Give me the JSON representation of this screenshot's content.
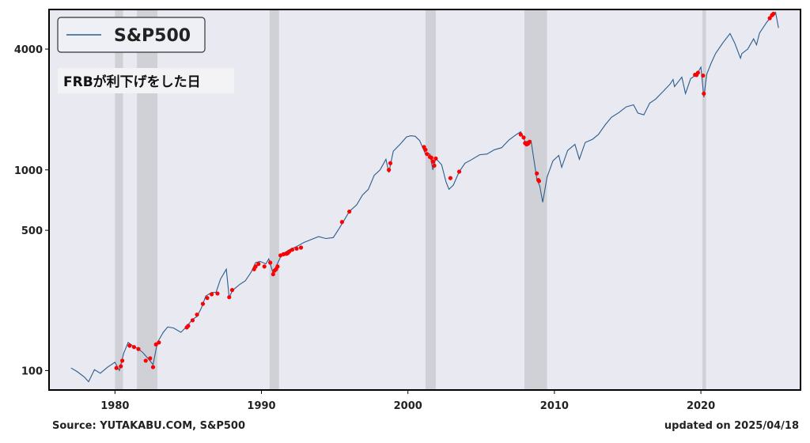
{
  "footer": {
    "source": "Source: YUTAKABU.COM, S&P500",
    "updated": "updated on 2025/04/18"
  },
  "chart_data": {
    "type": "line",
    "title": "",
    "xlabel": "",
    "ylabel": "",
    "y_scale": "log",
    "xlim": [
      1975.5,
      2026.8
    ],
    "ylim": [
      80,
      6300
    ],
    "x_ticks": [
      1980,
      1990,
      2000,
      2010,
      2020
    ],
    "x_tick_labels": [
      "1980",
      "1990",
      "2000",
      "2010",
      "2020"
    ],
    "y_ticks": [
      100,
      500,
      1000,
      4000
    ],
    "y_tick_labels": [
      "100",
      "500",
      "1000",
      "4000"
    ],
    "grid": false,
    "background_color": "#e9e9f2",
    "legend": {
      "position": "top-left",
      "entries": [
        "S&P500"
      ]
    },
    "annotation": "FRBが利下げをした日",
    "series": [
      {
        "name": "S&P500",
        "color": "#2b5d8c",
        "points": [
          [
            1977.0,
            103
          ],
          [
            1977.4,
            99
          ],
          [
            1977.9,
            93
          ],
          [
            1978.2,
            88
          ],
          [
            1978.6,
            101
          ],
          [
            1979.0,
            97
          ],
          [
            1979.5,
            104
          ],
          [
            1980.0,
            110
          ],
          [
            1980.3,
            100
          ],
          [
            1980.6,
            122
          ],
          [
            1980.9,
            138
          ],
          [
            1981.2,
            133
          ],
          [
            1981.6,
            128
          ],
          [
            1981.9,
            123
          ],
          [
            1982.3,
            114
          ],
          [
            1982.6,
            107
          ],
          [
            1982.9,
            138
          ],
          [
            1983.3,
            155
          ],
          [
            1983.6,
            165
          ],
          [
            1984.0,
            163
          ],
          [
            1984.5,
            155
          ],
          [
            1984.9,
            166
          ],
          [
            1985.3,
            180
          ],
          [
            1985.6,
            186
          ],
          [
            1985.9,
            205
          ],
          [
            1986.2,
            235
          ],
          [
            1986.6,
            245
          ],
          [
            1986.9,
            245
          ],
          [
            1987.2,
            285
          ],
          [
            1987.6,
            320
          ],
          [
            1987.8,
            230
          ],
          [
            1988.0,
            250
          ],
          [
            1988.5,
            268
          ],
          [
            1988.9,
            280
          ],
          [
            1989.3,
            310
          ],
          [
            1989.6,
            345
          ],
          [
            1989.9,
            350
          ],
          [
            1990.3,
            340
          ],
          [
            1990.5,
            360
          ],
          [
            1990.8,
            305
          ],
          [
            1991.0,
            330
          ],
          [
            1991.4,
            380
          ],
          [
            1991.9,
            400
          ],
          [
            1992.4,
            415
          ],
          [
            1992.9,
            435
          ],
          [
            1993.4,
            450
          ],
          [
            1993.9,
            465
          ],
          [
            1994.4,
            455
          ],
          [
            1994.9,
            460
          ],
          [
            1995.3,
            510
          ],
          [
            1995.7,
            570
          ],
          [
            1996.0,
            620
          ],
          [
            1996.5,
            670
          ],
          [
            1996.9,
            750
          ],
          [
            1997.3,
            800
          ],
          [
            1997.7,
            940
          ],
          [
            1998.1,
            1000
          ],
          [
            1998.5,
            1130
          ],
          [
            1998.7,
            970
          ],
          [
            1999.0,
            1240
          ],
          [
            1999.5,
            1350
          ],
          [
            1999.9,
            1460
          ],
          [
            2000.2,
            1480
          ],
          [
            2000.5,
            1470
          ],
          [
            2000.8,
            1400
          ],
          [
            2001.2,
            1200
          ],
          [
            2001.5,
            1200
          ],
          [
            2001.7,
            1000
          ],
          [
            2001.9,
            1140
          ],
          [
            2002.3,
            1060
          ],
          [
            2002.6,
            870
          ],
          [
            2002.8,
            800
          ],
          [
            2003.1,
            840
          ],
          [
            2003.5,
            980
          ],
          [
            2003.9,
            1080
          ],
          [
            2004.3,
            1120
          ],
          [
            2004.9,
            1190
          ],
          [
            2005.4,
            1200
          ],
          [
            2005.9,
            1260
          ],
          [
            2006.4,
            1290
          ],
          [
            2006.9,
            1410
          ],
          [
            2007.4,
            1500
          ],
          [
            2007.7,
            1550
          ],
          [
            2008.0,
            1380
          ],
          [
            2008.4,
            1400
          ],
          [
            2008.8,
            900
          ],
          [
            2009.0,
            830
          ],
          [
            2009.2,
            690
          ],
          [
            2009.5,
            920
          ],
          [
            2009.9,
            1110
          ],
          [
            2010.3,
            1180
          ],
          [
            2010.5,
            1030
          ],
          [
            2010.9,
            1250
          ],
          [
            2011.4,
            1340
          ],
          [
            2011.7,
            1130
          ],
          [
            2012.1,
            1370
          ],
          [
            2012.6,
            1420
          ],
          [
            2013.0,
            1500
          ],
          [
            2013.5,
            1690
          ],
          [
            2013.9,
            1830
          ],
          [
            2014.4,
            1930
          ],
          [
            2014.9,
            2060
          ],
          [
            2015.4,
            2110
          ],
          [
            2015.7,
            1920
          ],
          [
            2016.1,
            1880
          ],
          [
            2016.5,
            2150
          ],
          [
            2016.9,
            2250
          ],
          [
            2017.4,
            2450
          ],
          [
            2017.9,
            2680
          ],
          [
            2018.1,
            2820
          ],
          [
            2018.2,
            2600
          ],
          [
            2018.7,
            2900
          ],
          [
            2018.95,
            2400
          ],
          [
            2019.3,
            2850
          ],
          [
            2019.7,
            2980
          ],
          [
            2020.0,
            3250
          ],
          [
            2020.2,
            2300
          ],
          [
            2020.4,
            3000
          ],
          [
            2020.7,
            3400
          ],
          [
            2021.0,
            3800
          ],
          [
            2021.5,
            4300
          ],
          [
            2021.99,
            4780
          ],
          [
            2022.3,
            4300
          ],
          [
            2022.7,
            3600
          ],
          [
            2022.8,
            3800
          ],
          [
            2023.2,
            4000
          ],
          [
            2023.6,
            4500
          ],
          [
            2023.8,
            4200
          ],
          [
            2024.0,
            4800
          ],
          [
            2024.5,
            5450
          ],
          [
            2024.9,
            5900
          ],
          [
            2025.1,
            6100
          ],
          [
            2025.3,
            5100
          ]
        ]
      }
    ],
    "recession_bands": [
      [
        1980.0,
        1980.55
      ],
      [
        1981.5,
        1982.9
      ],
      [
        1990.55,
        1991.2
      ],
      [
        2001.2,
        2001.9
      ],
      [
        2007.95,
        2009.5
      ],
      [
        2020.1,
        2020.35
      ]
    ],
    "cut_points": {
      "name": "FRBが利下げをした日",
      "color": "#ff0000",
      "points": [
        [
          1980.1,
          103
        ],
        [
          1980.4,
          105
        ],
        [
          1980.5,
          112
        ],
        [
          1981.0,
          133
        ],
        [
          1981.3,
          131
        ],
        [
          1981.6,
          128
        ],
        [
          1982.1,
          112
        ],
        [
          1982.4,
          115
        ],
        [
          1982.6,
          104
        ],
        [
          1982.8,
          135
        ],
        [
          1983.0,
          138
        ],
        [
          1984.9,
          164
        ],
        [
          1985.0,
          167
        ],
        [
          1985.3,
          178
        ],
        [
          1985.6,
          190
        ],
        [
          1986.0,
          215
        ],
        [
          1986.3,
          230
        ],
        [
          1986.6,
          240
        ],
        [
          1987.0,
          242
        ],
        [
          1987.8,
          232
        ],
        [
          1988.0,
          252
        ],
        [
          1989.5,
          320
        ],
        [
          1989.6,
          330
        ],
        [
          1989.8,
          340
        ],
        [
          1990.2,
          330
        ],
        [
          1990.6,
          345
        ],
        [
          1990.8,
          302
        ],
        [
          1990.9,
          315
        ],
        [
          1991.0,
          320
        ],
        [
          1991.1,
          330
        ],
        [
          1991.3,
          375
        ],
        [
          1991.5,
          380
        ],
        [
          1991.7,
          382
        ],
        [
          1991.8,
          385
        ],
        [
          1991.9,
          392
        ],
        [
          1992.1,
          400
        ],
        [
          1992.4,
          405
        ],
        [
          1992.7,
          410
        ],
        [
          1995.5,
          550
        ],
        [
          1996.0,
          620
        ],
        [
          1998.7,
          1000
        ],
        [
          1998.8,
          1080
        ],
        [
          2001.1,
          1300
        ],
        [
          2001.2,
          1260
        ],
        [
          2001.3,
          1200
        ],
        [
          2001.5,
          1160
        ],
        [
          2001.6,
          1150
        ],
        [
          2001.7,
          1100
        ],
        [
          2001.8,
          1050
        ],
        [
          2001.9,
          1140
        ],
        [
          2002.9,
          910
        ],
        [
          2003.5,
          980
        ],
        [
          2007.7,
          1500
        ],
        [
          2007.9,
          1450
        ],
        [
          2008.0,
          1360
        ],
        [
          2008.1,
          1340
        ],
        [
          2008.2,
          1350
        ],
        [
          2008.3,
          1380
        ],
        [
          2008.8,
          960
        ],
        [
          2008.9,
          890
        ],
        [
          2008.95,
          880
        ],
        [
          2019.6,
          2980
        ],
        [
          2019.7,
          2970
        ],
        [
          2019.8,
          3050
        ],
        [
          2020.15,
          2950
        ],
        [
          2020.2,
          2400
        ],
        [
          2024.7,
          5700
        ],
        [
          2024.85,
          5900
        ],
        [
          2024.95,
          6000
        ]
      ]
    }
  }
}
